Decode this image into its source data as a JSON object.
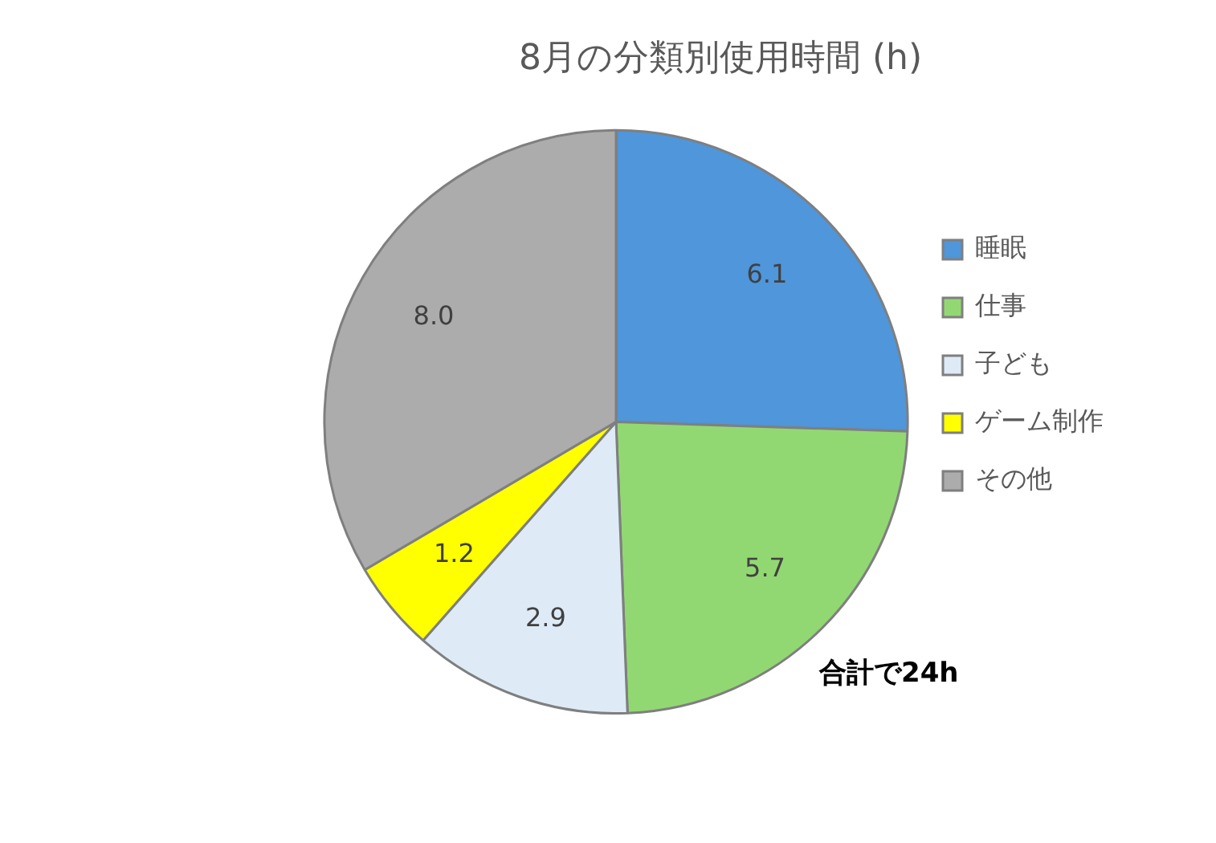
{
  "chart_data": {
    "type": "pie",
    "title": "8月の分類別使用時間 (h)",
    "categories": [
      "睡眠",
      "仕事",
      "子ども",
      "ゲーム制作",
      "その他"
    ],
    "values": [
      6.1,
      5.7,
      2.9,
      1.2,
      8.0
    ],
    "colors": [
      "#4f96db",
      "#92d872",
      "#deebf7",
      "#ffff00",
      "#acacac"
    ],
    "value_labels": [
      "6.1",
      "5.7",
      "2.9",
      "1.2",
      "8.0"
    ],
    "legend": "right",
    "annotations": [
      "合計で24h"
    ]
  }
}
